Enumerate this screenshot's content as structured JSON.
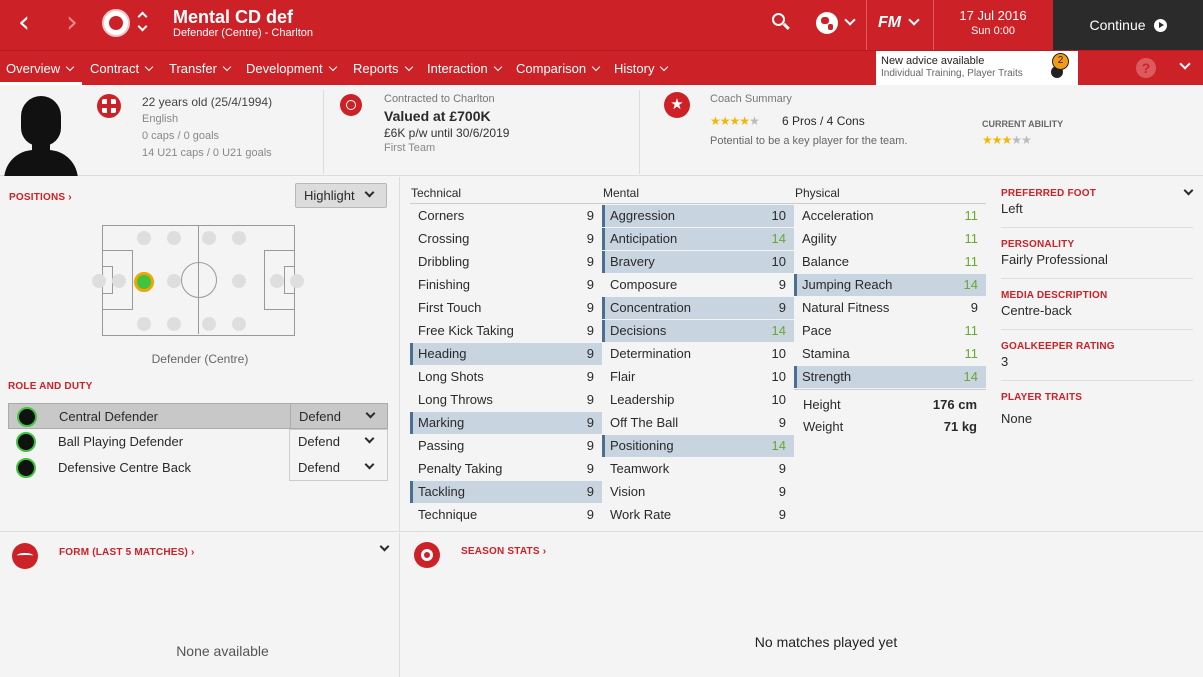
{
  "topbar": {
    "player_name": "Mental CD def",
    "subtitle": "Defender (Centre) - Charlton",
    "date": "17 Jul 2016",
    "time": "Sun 0:00",
    "fm_label": "FM",
    "continue_label": "Continue"
  },
  "menu": [
    "Overview",
    "Contract",
    "Transfer",
    "Development",
    "Reports",
    "Interaction",
    "Comparison",
    "History"
  ],
  "advice": {
    "title": "New advice available",
    "detail": "Individual Training, Player Traits",
    "count": "2"
  },
  "header": {
    "age": "22 years old (25/4/1994)",
    "nationality": "English",
    "caps": "0 caps / 0 goals",
    "u21": "14 U21 caps / 0 U21 goals",
    "contracted": "Contracted to Charlton",
    "value": "Valued at £700K",
    "wage": "£6K p/w until 30/6/2019",
    "squad": "First Team",
    "coach_title": "Coach Summary",
    "coach_pros": "6 Pros / 4 Cons",
    "coach_potential": "Potential to be a key player for the team.",
    "coach_stars": 4,
    "ability_title": "CURRENT ABILITY",
    "ability_stars": 3
  },
  "positions": {
    "title": "POSITIONS",
    "highlight": "Highlight",
    "caption": "Defender (Centre)"
  },
  "role_duty": {
    "title": "ROLE AND DUTY",
    "roles": [
      {
        "role": "Central Defender",
        "duty": "Defend"
      },
      {
        "role": "Ball Playing Defender",
        "duty": "Defend"
      },
      {
        "role": "Defensive Centre Back",
        "duty": "Defend"
      }
    ]
  },
  "attributes": {
    "technical_title": "Technical",
    "mental_title": "Mental",
    "physical_title": "Physical",
    "technical": [
      {
        "name": "Corners",
        "value": "9",
        "hl": false
      },
      {
        "name": "Crossing",
        "value": "9",
        "hl": false
      },
      {
        "name": "Dribbling",
        "value": "9",
        "hl": false
      },
      {
        "name": "Finishing",
        "value": "9",
        "hl": false
      },
      {
        "name": "First Touch",
        "value": "9",
        "hl": false
      },
      {
        "name": "Free Kick Taking",
        "value": "9",
        "hl": false
      },
      {
        "name": "Heading",
        "value": "9",
        "hl": true
      },
      {
        "name": "Long Shots",
        "value": "9",
        "hl": false
      },
      {
        "name": "Long Throws",
        "value": "9",
        "hl": false
      },
      {
        "name": "Marking",
        "value": "9",
        "hl": true
      },
      {
        "name": "Passing",
        "value": "9",
        "hl": false
      },
      {
        "name": "Penalty Taking",
        "value": "9",
        "hl": false
      },
      {
        "name": "Tackling",
        "value": "9",
        "hl": true
      },
      {
        "name": "Technique",
        "value": "9",
        "hl": false
      }
    ],
    "mental": [
      {
        "name": "Aggression",
        "value": "10",
        "hl": true
      },
      {
        "name": "Anticipation",
        "value": "14",
        "hl": true
      },
      {
        "name": "Bravery",
        "value": "10",
        "hl": true
      },
      {
        "name": "Composure",
        "value": "9",
        "hl": false
      },
      {
        "name": "Concentration",
        "value": "9",
        "hl": true
      },
      {
        "name": "Decisions",
        "value": "14",
        "hl": true
      },
      {
        "name": "Determination",
        "value": "10",
        "hl": false
      },
      {
        "name": "Flair",
        "value": "10",
        "hl": false
      },
      {
        "name": "Leadership",
        "value": "10",
        "hl": false
      },
      {
        "name": "Off The Ball",
        "value": "9",
        "hl": false
      },
      {
        "name": "Positioning",
        "value": "14",
        "hl": true
      },
      {
        "name": "Teamwork",
        "value": "9",
        "hl": false
      },
      {
        "name": "Vision",
        "value": "9",
        "hl": false
      },
      {
        "name": "Work Rate",
        "value": "9",
        "hl": false
      }
    ],
    "physical": [
      {
        "name": "Acceleration",
        "value": "11",
        "hl": false
      },
      {
        "name": "Agility",
        "value": "11",
        "hl": false
      },
      {
        "name": "Balance",
        "value": "11",
        "hl": false
      },
      {
        "name": "Jumping Reach",
        "value": "14",
        "hl": true
      },
      {
        "name": "Natural Fitness",
        "value": "9",
        "hl": false
      },
      {
        "name": "Pace",
        "value": "11",
        "hl": false
      },
      {
        "name": "Stamina",
        "value": "11",
        "hl": false
      },
      {
        "name": "Strength",
        "value": "14",
        "hl": true
      }
    ],
    "height_label": "Height",
    "height": "176 cm",
    "weight_label": "Weight",
    "weight": "71 kg"
  },
  "info": [
    {
      "label": "PREFERRED FOOT",
      "value": "Left"
    },
    {
      "label": "PERSONALITY",
      "value": "Fairly Professional"
    },
    {
      "label": "MEDIA DESCRIPTION",
      "value": "Centre-back"
    },
    {
      "label": "GOALKEEPER RATING",
      "value": "3"
    },
    {
      "label": "PLAYER TRAITS",
      "value": "None"
    }
  ],
  "form": {
    "title": "FORM (LAST 5 MATCHES)",
    "empty": "None available"
  },
  "season": {
    "title": "SEASON STATS",
    "empty": "No matches played yet"
  },
  "colors": {
    "brand": "#cc2127",
    "highlight": "#c8d4df",
    "good": "#6aa82f",
    "dark": "#2b2b2b"
  }
}
